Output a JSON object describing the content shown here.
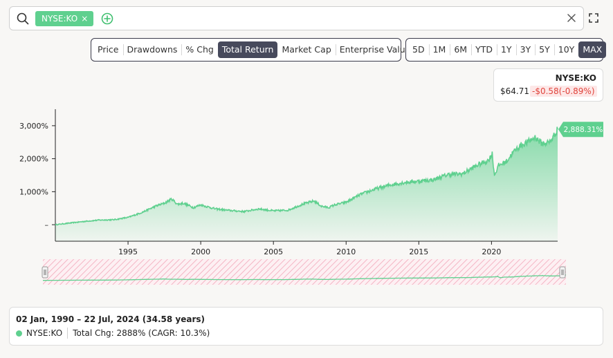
{
  "search": {
    "ticker_chip": "NYSE:KO",
    "chip_close": "×"
  },
  "metric_tabs": [
    "Price",
    "Drawdowns",
    "% Chg",
    "Total Return",
    "Market Cap",
    "Enterprise Value"
  ],
  "metric_active": "Total Return",
  "range_tabs": [
    "5D",
    "1M",
    "6M",
    "YTD",
    "1Y",
    "3Y",
    "5Y",
    "10Y",
    "MAX"
  ],
  "range_active": "MAX",
  "quote": {
    "symbol": "NYSE:KO",
    "price": "$64.71",
    "change": "-$0.58(-0.89%)"
  },
  "colors": {
    "series": "#5fd08f",
    "negative": "#e0443c",
    "active_tab": "#474a5c"
  },
  "chart_data": {
    "type": "area",
    "series": [
      {
        "name": "NYSE:KO",
        "x": [
          1990.0,
          1991.0,
          1992.0,
          1993.0,
          1994.0,
          1995.0,
          1996.0,
          1997.0,
          1997.5,
          1998.0,
          1998.4,
          1998.8,
          1999.5,
          2000.0,
          2001.0,
          2002.0,
          2003.0,
          2004.0,
          2005.0,
          2006.0,
          2007.0,
          2007.8,
          2008.3,
          2008.8,
          2009.2,
          2010.0,
          2011.0,
          2012.0,
          2013.0,
          2014.0,
          2015.0,
          2016.0,
          2017.0,
          2018.0,
          2019.0,
          2019.8,
          2020.05,
          2020.2,
          2020.5,
          2021.0,
          2021.5,
          2022.0,
          2022.5,
          2023.0,
          2023.5,
          2024.0,
          2024.3,
          2024.55
        ],
        "y": [
          0,
          50,
          100,
          140,
          150,
          220,
          380,
          580,
          650,
          780,
          620,
          650,
          520,
          600,
          480,
          430,
          400,
          480,
          420,
          440,
          620,
          720,
          560,
          520,
          600,
          680,
          920,
          1080,
          1200,
          1280,
          1320,
          1360,
          1520,
          1540,
          1800,
          1950,
          2150,
          1500,
          1800,
          1900,
          2200,
          2400,
          2500,
          2650,
          2450,
          2500,
          2700,
          2888.31
        ]
      }
    ],
    "y_ticks": [
      "–",
      "1,000%",
      "2,000%",
      "3,000%"
    ],
    "y_tick_values": [
      0,
      1000,
      2000,
      3000
    ],
    "x_ticks": [
      "1995",
      "2000",
      "2005",
      "2010",
      "2015",
      "2020"
    ],
    "x_tick_values": [
      1995,
      2000,
      2005,
      2010,
      2015,
      2020
    ],
    "xlim": [
      1990.0,
      2024.55
    ],
    "ylim": [
      -500,
      3500
    ],
    "last_value_label": "2,888.31%",
    "grid": false
  },
  "info": {
    "date_range": "02 Jan, 1990 – 22 Jul, 2024 (34.58 years)",
    "symbol": "NYSE:KO",
    "total_change": "Total Chg: 2888% (CAGR: 10.3%)"
  }
}
